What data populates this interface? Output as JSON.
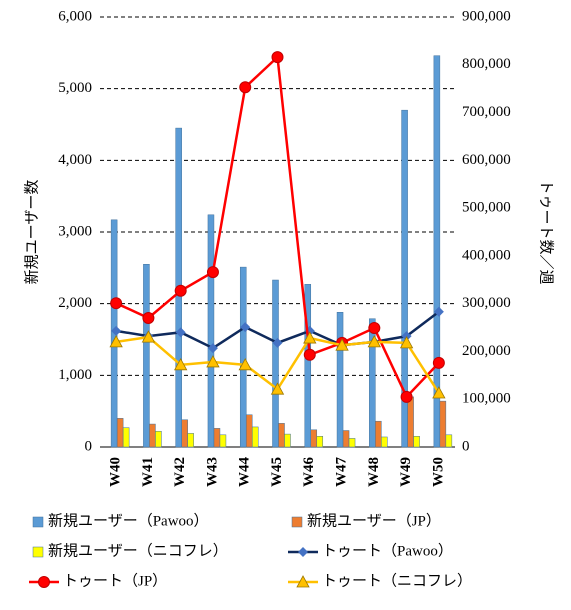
{
  "chart_data": {
    "type": "bar",
    "y_label": "新規ユーザー数",
    "y2_label": "トゥート数／週",
    "categories": [
      "W40",
      "W41",
      "W42",
      "W43",
      "W44",
      "W45",
      "W46",
      "W47",
      "W48",
      "W49",
      "W50"
    ],
    "ylim": [
      0,
      6000
    ],
    "yticks": [
      0,
      {
        "value": 1000,
        "label": "1,000"
      },
      {
        "value": 2000,
        "label": "2,000"
      },
      {
        "value": 3000,
        "label": "3,000"
      },
      {
        "value": 4000,
        "label": "4,000"
      },
      {
        "value": 5000,
        "label": "5,000"
      },
      {
        "value": 6000,
        "label": "6,000"
      }
    ],
    "y2lim": [
      0,
      900000
    ],
    "y2ticks": [
      0,
      {
        "value": 100000,
        "label": "100,000"
      },
      {
        "value": 200000,
        "label": "200,000"
      },
      {
        "value": 300000,
        "label": "300,000"
      },
      {
        "value": 400000,
        "label": "400,000"
      },
      {
        "value": 500000,
        "label": "500,000"
      },
      {
        "value": 600000,
        "label": "600,000"
      },
      {
        "value": 700000,
        "label": "700,000"
      },
      {
        "value": 800000,
        "label": "800,000"
      },
      {
        "value": 900000,
        "label": "900,000"
      }
    ],
    "grid": true,
    "series": [
      {
        "name": "新規ユーザー（Pawoo）",
        "type": "bar",
        "color": "#5b9bd5",
        "values": [
          3170,
          2550,
          4450,
          3240,
          2510,
          2330,
          2270,
          1880,
          1790,
          4700,
          5460
        ]
      },
      {
        "name": "新規ユーザー（JP）",
        "type": "bar",
        "color": "#ed7d31",
        "values": [
          400,
          320,
          380,
          260,
          450,
          330,
          240,
          230,
          360,
          700,
          640
        ]
      },
      {
        "name": "新規ユーザー（ニコフレ）",
        "type": "bar",
        "color": "#ffff00",
        "values": [
          270,
          220,
          190,
          170,
          280,
          180,
          150,
          120,
          140,
          150,
          170
        ]
      },
      {
        "name": "トゥート（Pawoo）",
        "type": "line",
        "axis": "y2",
        "color": "#0f2a5c",
        "marker": "diamond",
        "marker_color": "#4472c4",
        "values": [
          243000,
          232000,
          240000,
          207000,
          251000,
          218000,
          243000,
          213000,
          220000,
          232000,
          283000
        ]
      },
      {
        "name": "トゥート（JP）",
        "type": "line",
        "axis": "y2",
        "color": "#ff0000",
        "marker": "circle",
        "marker_color": "#ff0000",
        "values": [
          301000,
          270000,
          327000,
          366000,
          753000,
          816000,
          193000,
          218000,
          249000,
          105000,
          176000
        ]
      },
      {
        "name": "トゥート（ニコフレ）",
        "type": "line",
        "axis": "y2",
        "color": "#ffc000",
        "marker": "triangle",
        "marker_color": "#ffc000",
        "values": [
          220000,
          230000,
          172000,
          178000,
          172000,
          121000,
          228000,
          213000,
          220000,
          218000,
          113000
        ]
      }
    ]
  }
}
